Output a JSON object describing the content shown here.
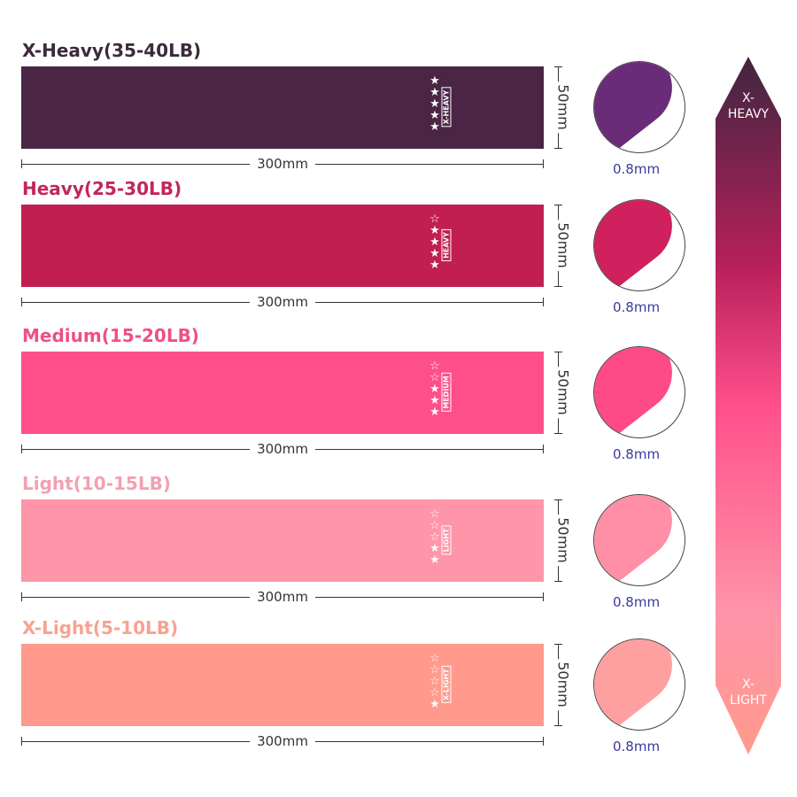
{
  "bands": [
    {
      "title": "X-Heavy(35-40LB)",
      "tag": "X-HEAVY",
      "stars_filled": 5,
      "stars_total": 5,
      "width": "300mm",
      "height": "50mm",
      "thickness": "0.8mm",
      "color": "#4a2545",
      "title_color": "#3d2a3c",
      "circle_color": "#6a2c78"
    },
    {
      "title": "Heavy(25-30LB)",
      "tag": "HEAVY",
      "stars_filled": 4,
      "stars_total": 5,
      "width": "300mm",
      "height": "50mm",
      "thickness": "0.8mm",
      "color": "#c11f52",
      "title_color": "#c2265a",
      "circle_color": "#d0205e"
    },
    {
      "title": "Medium(15-20LB)",
      "tag": "MEDIUM",
      "stars_filled": 3,
      "stars_total": 5,
      "width": "300mm",
      "height": "50mm",
      "thickness": "0.8mm",
      "color": "#ff4f8b",
      "title_color": "#ef4f86",
      "circle_color": "#ff4a88"
    },
    {
      "title": "Light(10-15LB)",
      "tag": "LIGHT",
      "stars_filled": 2,
      "stars_total": 5,
      "width": "300mm",
      "height": "50mm",
      "thickness": "0.8mm",
      "color": "#ff95a9",
      "title_color": "#f3a0b0",
      "circle_color": "#ff8fa6"
    },
    {
      "title": "X-Light(5-10LB)",
      "tag": "X-LIGHT",
      "stars_filled": 1,
      "stars_total": 5,
      "width": "300mm",
      "height": "50mm",
      "thickness": "0.8mm",
      "color": "#ff9a8c",
      "title_color": "#f6a390",
      "circle_color": "#ffa0a0"
    }
  ],
  "scale": {
    "top_line1": "X-",
    "top_line2": "HEAVY",
    "bottom_line1": "X-",
    "bottom_line2": "LIGHT",
    "top_color": "#4a2545",
    "mid_color": "#ff4f8b",
    "bottom_color": "#ff9a8c"
  }
}
